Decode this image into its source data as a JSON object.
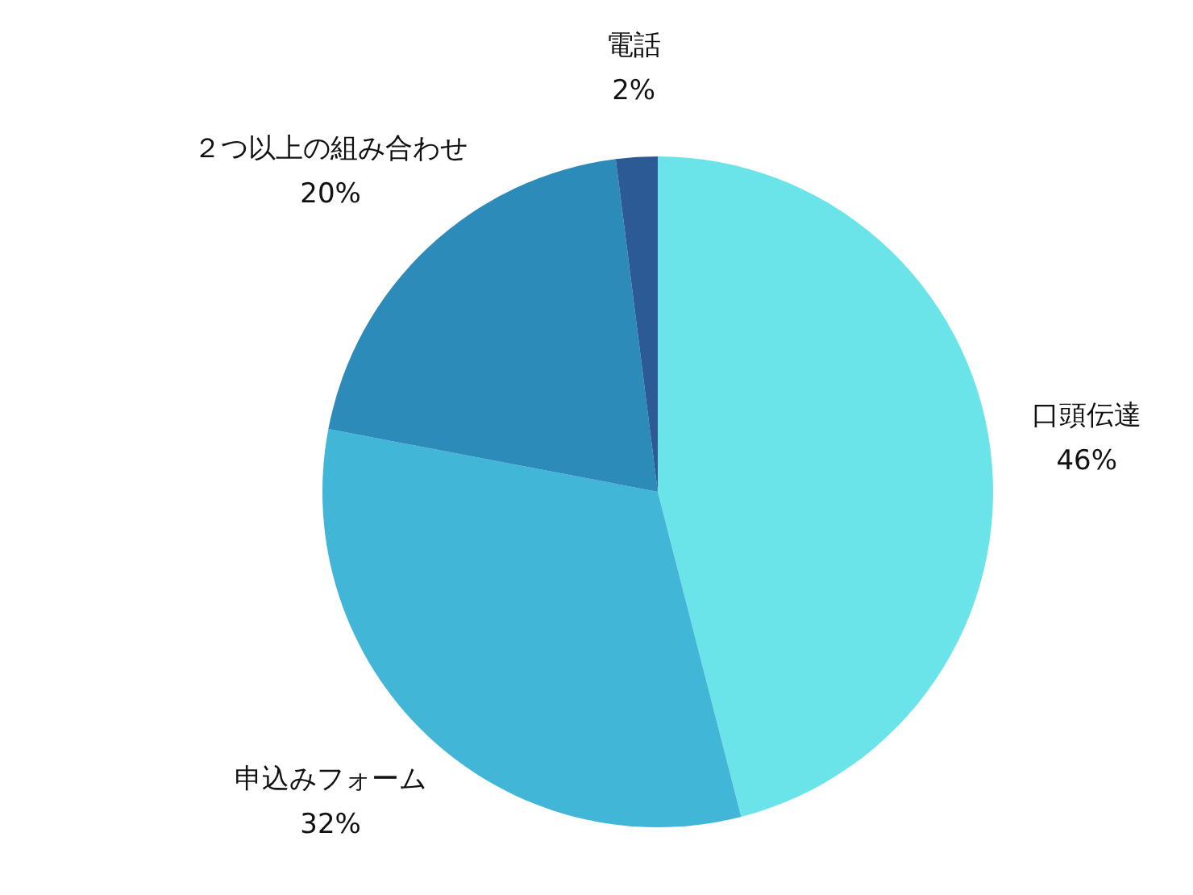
{
  "chart_data": {
    "type": "pie",
    "categories": [
      "口頭伝達",
      "申込みフォーム",
      "２つ以上の組み合わせ",
      "電話"
    ],
    "values": [
      46,
      32,
      20,
      2
    ],
    "colors": [
      "#6ae4e9",
      "#42b6d6",
      "#2d8bba",
      "#2c5a94"
    ],
    "value_labels": [
      "46%",
      "32%",
      "20%",
      "2%"
    ],
    "legend": false
  }
}
